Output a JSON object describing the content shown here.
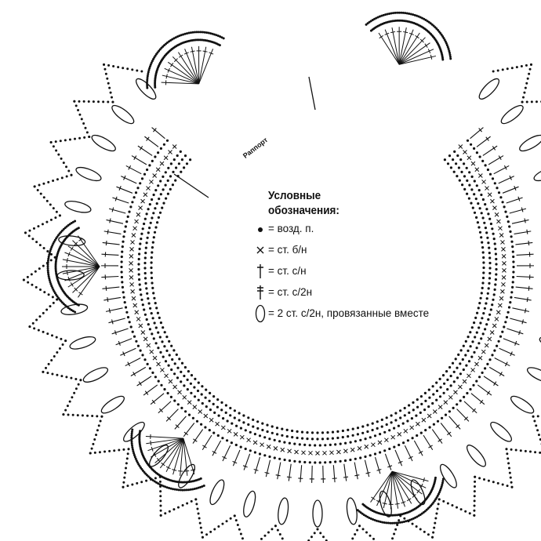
{
  "rapport_label": "Раппорт",
  "legend": {
    "title_line1": "Условные",
    "title_line2": "обозначения:",
    "items": [
      {
        "symbol": "chain-dot-icon",
        "text": "= возд. п."
      },
      {
        "symbol": "cross-icon",
        "text": "= ст. б/н"
      },
      {
        "symbol": "double-crochet-icon",
        "text": "= ст. с/н"
      },
      {
        "symbol": "treble-crochet-icon",
        "text": "= ст. с/2н"
      },
      {
        "symbol": "oval-cluster-icon",
        "text": "= 2 ст. с/2н, провязанные вместе"
      }
    ]
  },
  "colors": {
    "ink": "#111111",
    "background": "#ffffff"
  }
}
